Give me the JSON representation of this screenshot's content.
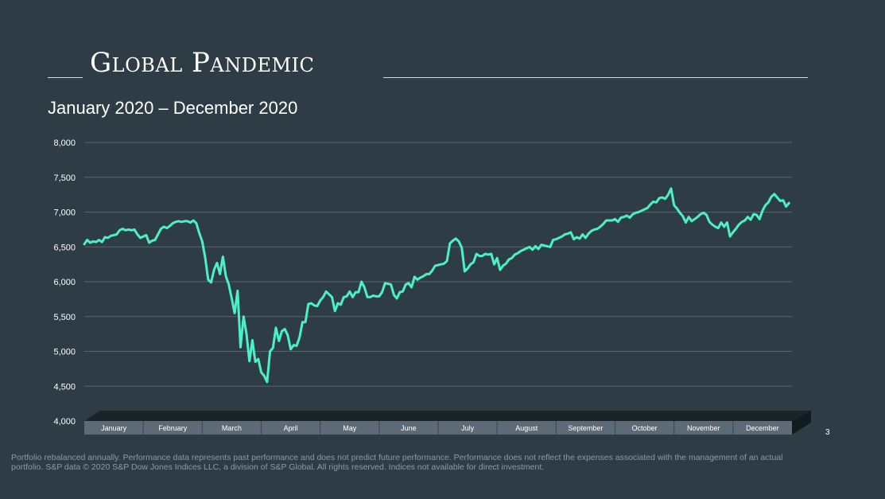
{
  "slide": {
    "title": "Global Pandemic",
    "subtitle": "January 2020 – December 2020",
    "page_number": "3",
    "footnote": "Portfolio rebalanced annually. Performance data represents past performance and does not predict future performance. Performance does not reflect the expenses associated with the management of an actual portfolio. S&P data © 2020 S&P Dow Jones Indices LLC, a division of S&P Global. All rights reserved. Indices not available for direct investment."
  },
  "chart_data": {
    "type": "line",
    "title": "",
    "xlabel": "",
    "ylabel": "",
    "ylim": [
      4000,
      8000
    ],
    "y_ticks": [
      4000,
      4500,
      5000,
      5500,
      6000,
      6500,
      7000,
      7500,
      8000
    ],
    "y_tick_labels": [
      "4,000",
      "4,500",
      "5,000",
      "5,500",
      "6,000",
      "6,500",
      "7,000",
      "7,500",
      "8,000"
    ],
    "categories": [
      "January",
      "February",
      "March",
      "April",
      "May",
      "June",
      "July",
      "August",
      "September",
      "October",
      "November",
      "December"
    ],
    "grid": true,
    "line_color": "#4cf0c6",
    "series": [
      {
        "x": [
          0.0,
          0.05,
          0.1,
          0.15,
          0.2,
          0.25,
          0.3,
          0.35,
          0.4,
          0.45,
          0.5,
          0.55,
          0.6,
          0.65,
          0.7,
          0.75,
          0.8,
          0.85,
          0.9,
          0.95,
          1.0,
          1.05,
          1.1,
          1.15,
          1.2,
          1.25,
          1.3,
          1.35,
          1.4,
          1.45,
          1.5,
          1.55,
          1.6,
          1.65,
          1.7,
          1.75,
          1.8,
          1.85,
          1.9,
          1.95,
          2.0,
          2.05,
          2.1,
          2.15,
          2.2,
          2.25,
          2.3,
          2.35,
          2.4,
          2.45,
          2.5,
          2.55,
          2.6,
          2.65,
          2.7,
          2.75,
          2.8,
          2.85,
          2.9,
          2.95,
          3.0,
          3.05,
          3.1,
          3.15,
          3.2,
          3.25,
          3.3,
          3.35,
          3.4,
          3.45,
          3.5,
          3.55,
          3.6,
          3.65,
          3.7,
          3.75,
          3.8,
          3.85,
          3.9,
          3.95,
          4.0,
          4.05,
          4.1,
          4.15,
          4.2,
          4.25,
          4.3,
          4.35,
          4.4,
          4.45,
          4.5,
          4.55,
          4.6,
          4.65,
          4.7,
          4.75,
          4.8,
          4.85,
          4.9,
          4.95,
          5.0,
          5.05,
          5.1,
          5.15,
          5.2,
          5.25,
          5.3,
          5.35,
          5.4,
          5.45,
          5.5,
          5.55,
          5.6,
          5.65,
          5.7,
          5.75,
          5.8,
          5.85,
          5.9,
          5.95,
          6.0,
          6.05,
          6.1,
          6.15,
          6.2,
          6.25,
          6.3,
          6.35,
          6.4,
          6.45,
          6.5,
          6.55,
          6.6,
          6.65,
          6.7,
          6.75,
          6.8,
          6.85,
          6.9,
          6.95,
          7.0,
          7.05,
          7.1,
          7.15,
          7.2,
          7.25,
          7.3,
          7.35,
          7.4,
          7.45,
          7.5,
          7.55,
          7.6,
          7.65,
          7.7,
          7.75,
          7.8,
          7.85,
          7.9,
          7.95,
          8.0,
          8.05,
          8.1,
          8.15,
          8.2,
          8.25,
          8.3,
          8.35,
          8.4,
          8.45,
          8.5,
          8.55,
          8.6,
          8.65,
          8.7,
          8.75,
          8.8,
          8.85,
          8.9,
          8.95,
          9.0,
          9.05,
          9.1,
          9.15,
          9.2,
          9.25,
          9.3,
          9.35,
          9.4,
          9.45,
          9.5,
          9.55,
          9.6,
          9.65,
          9.7,
          9.75,
          9.8,
          9.85,
          9.9,
          9.95,
          10.0,
          10.05,
          10.1,
          10.15,
          10.2,
          10.25,
          10.3,
          10.35,
          10.4,
          10.45,
          10.5,
          10.55,
          10.6,
          10.65,
          10.7,
          10.75,
          10.8,
          10.85,
          10.9,
          10.95,
          11.0,
          11.05,
          11.1,
          11.15,
          11.2,
          11.25,
          11.3,
          11.35,
          11.4,
          11.45,
          11.5,
          11.55,
          11.6,
          11.65,
          11.7,
          11.75,
          11.8,
          11.85,
          11.9,
          11.95
        ],
        "values": [
          6540,
          6600,
          6560,
          6580,
          6570,
          6600,
          6570,
          6640,
          6630,
          6660,
          6670,
          6680,
          6740,
          6760,
          6740,
          6750,
          6740,
          6750,
          6680,
          6630,
          6650,
          6670,
          6560,
          6590,
          6600,
          6680,
          6760,
          6790,
          6770,
          6800,
          6840,
          6860,
          6870,
          6860,
          6870,
          6870,
          6850,
          6880,
          6840,
          6700,
          6580,
          6350,
          6030,
          5990,
          6170,
          6270,
          6110,
          6360,
          6080,
          5960,
          5760,
          5550,
          5870,
          5060,
          5500,
          5250,
          4860,
          5160,
          4850,
          4890,
          4700,
          4650,
          4560,
          5000,
          5050,
          5340,
          5150,
          5290,
          5320,
          5230,
          5030,
          5090,
          5080,
          5200,
          5420,
          5420,
          5680,
          5690,
          5660,
          5650,
          5730,
          5780,
          5860,
          5820,
          5780,
          5580,
          5690,
          5670,
          5780,
          5790,
          5860,
          5780,
          5850,
          5850,
          6000,
          5920,
          5780,
          5780,
          5800,
          5790,
          5790,
          5850,
          5980,
          5970,
          5960,
          5810,
          5760,
          5850,
          5860,
          5960,
          5980,
          5920,
          6070,
          6030,
          6060,
          6080,
          6110,
          6110,
          6160,
          6230,
          6240,
          6250,
          6260,
          6300,
          6550,
          6590,
          6620,
          6580,
          6490,
          6150,
          6190,
          6250,
          6280,
          6400,
          6370,
          6370,
          6400,
          6390,
          6400,
          6250,
          6340,
          6170,
          6230,
          6260,
          6320,
          6340,
          6390,
          6410,
          6440,
          6460,
          6480,
          6500,
          6460,
          6510,
          6470,
          6530,
          6520,
          6510,
          6500,
          6600,
          6610,
          6630,
          6650,
          6680,
          6690,
          6710,
          6610,
          6640,
          6620,
          6680,
          6630,
          6690,
          6730,
          6750,
          6760,
          6790,
          6830,
          6880,
          6880,
          6880,
          6900,
          6860,
          6920,
          6930,
          6950,
          6920,
          6970,
          6990,
          7000,
          7020,
          7040,
          7060,
          7110,
          7150,
          7140,
          7200,
          7210,
          7190,
          7250,
          7340,
          7100,
          7050,
          6990,
          6940,
          6850,
          6930,
          6870,
          6900,
          6930,
          6970,
          6990,
          6960,
          6860,
          6820,
          6790,
          6770,
          6850,
          6790,
          6850,
          6650,
          6710,
          6760,
          6820,
          6860,
          6880,
          6930,
          6890,
          6970,
          6960,
          6900,
          7020,
          7100,
          7140,
          7220,
          7260,
          7210,
          7160,
          7170,
          7080,
          7130
        ]
      }
    ]
  }
}
